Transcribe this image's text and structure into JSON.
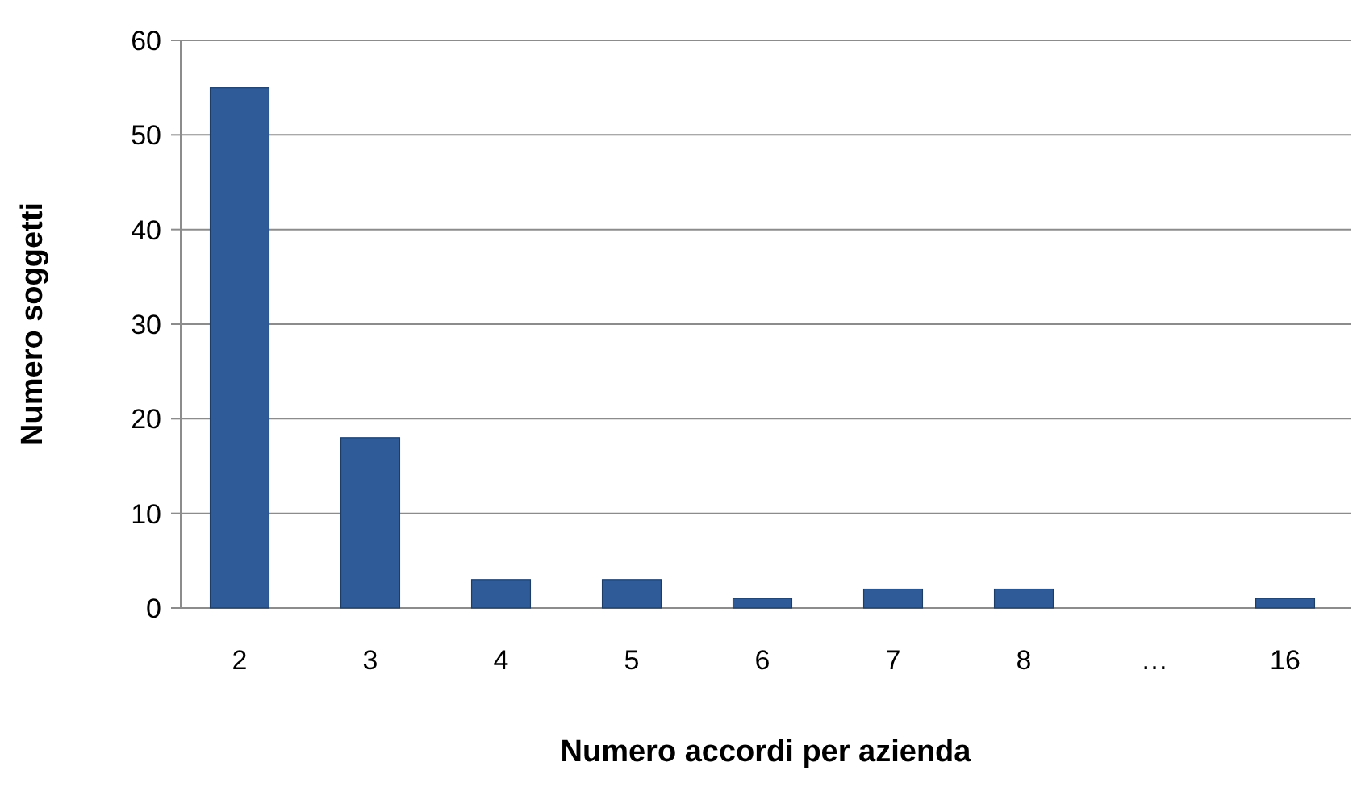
{
  "chart_data": {
    "type": "bar",
    "xlabel": "Numero accordi per azienda",
    "ylabel": "Numero soggetti",
    "categories": [
      "2",
      "3",
      "4",
      "5",
      "6",
      "7",
      "8",
      "…",
      "16"
    ],
    "values": [
      55,
      18,
      3,
      3,
      1,
      2,
      2,
      null,
      1
    ],
    "color": "#2f5c98",
    "ylim": [
      0,
      60
    ],
    "yticks": [
      0,
      10,
      20,
      30,
      40,
      50,
      60
    ],
    "grid": "y"
  }
}
